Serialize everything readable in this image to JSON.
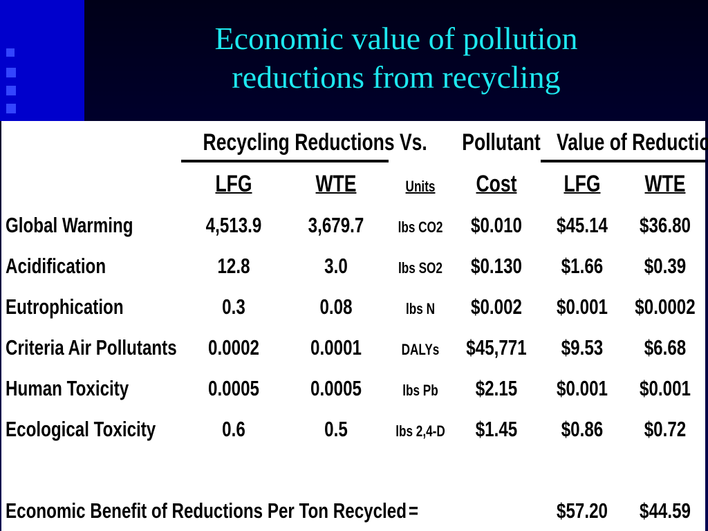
{
  "title": {
    "line1": "Economic value of pollution",
    "line2": "reductions from recycling"
  },
  "table": {
    "group_headers": {
      "reductions": "Recycling Reductions Vs.",
      "pollutant": "Pollutant",
      "value": "Value of Reductions"
    },
    "column_headers": [
      "LFG",
      "WTE",
      "Units",
      "Cost",
      "LFG",
      "WTE"
    ],
    "rows": [
      {
        "impact": "Global Warming",
        "red_lfg": "4,513.9",
        "red_wte": "3,679.7",
        "units": "lbs CO2",
        "cost": "$0.010",
        "val_lfg": "$45.14",
        "val_wte": "$36.80"
      },
      {
        "impact": "Acidification",
        "red_lfg": "12.8",
        "red_wte": "3.0",
        "units": "lbs SO2",
        "cost": "$0.130",
        "val_lfg": "$1.66",
        "val_wte": "$0.39"
      },
      {
        "impact": "Eutrophication",
        "red_lfg": "0.3",
        "red_wte": "0.08",
        "units": "lbs N",
        "cost": "$0.002",
        "val_lfg": "$0.001",
        "val_wte": "$0.0002"
      },
      {
        "impact": "Criteria Air Pollutants",
        "red_lfg": "0.0002",
        "red_wte": "0.0001",
        "units": "DALYs",
        "cost": "$45,771",
        "val_lfg": "$9.53",
        "val_wte": "$6.68"
      },
      {
        "impact": "Human Toxicity",
        "red_lfg": "0.0005",
        "red_wte": "0.0005",
        "units": "lbs Pb",
        "cost": "$2.15",
        "val_lfg": "$0.001",
        "val_wte": "$0.001"
      },
      {
        "impact": "Ecological Toxicity",
        "red_lfg": "0.6",
        "red_wte": "0.5",
        "units": "lbs 2,4-D",
        "cost": "$1.45",
        "val_lfg": "$0.86",
        "val_wte": "$0.72"
      }
    ],
    "total": {
      "label": "Economic Benefit of Reductions Per Ton Recycled",
      "equals": "=",
      "val_lfg": "$57.20",
      "val_wte": "$44.59"
    }
  },
  "colors": {
    "title": "#1ee8f0",
    "left_band": "#0000cc",
    "background": "#000040"
  }
}
